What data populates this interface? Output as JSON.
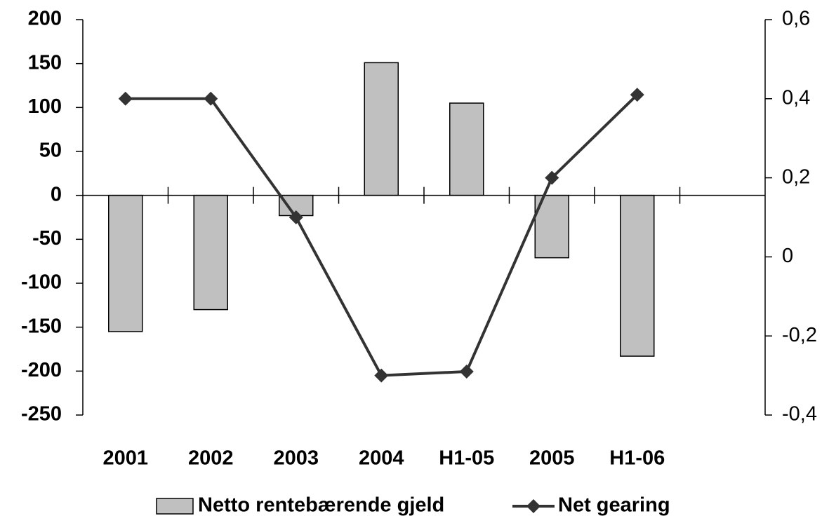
{
  "chart_data": {
    "type": "bar_line",
    "categories": [
      "2001",
      "2002",
      "2003",
      "2004",
      "H1-05",
      "2005",
      "H1-06",
      null
    ],
    "series": [
      {
        "name": "Netto rentebærende gjeld",
        "type": "bar",
        "color": "#c0c0c0",
        "values": [
          -155,
          -130,
          -23,
          151,
          105,
          -71,
          -183,
          null
        ]
      },
      {
        "name": "Net gearing",
        "type": "line",
        "axis": "y2",
        "color": "#333333",
        "values": [
          0.4,
          0.4,
          0.1,
          -0.3,
          -0.29,
          0.2,
          0.41,
          null
        ]
      }
    ],
    "ylim": [
      -250,
      200
    ],
    "yticks": [
      -250,
      -200,
      -150,
      -100,
      -50,
      0,
      50,
      100,
      150,
      200
    ],
    "y2lim": [
      -0.4,
      0.6
    ],
    "y2ticks": [
      {
        "value": -0.4,
        "label": "-0,4"
      },
      {
        "value": -0.2,
        "label": "-0,2"
      },
      0,
      {
        "value": 0.2,
        "label": "0,2"
      },
      {
        "value": 0.4,
        "label": "0,4"
      },
      {
        "value": 0.6,
        "label": "0,6"
      }
    ],
    "legend": "bottom"
  }
}
